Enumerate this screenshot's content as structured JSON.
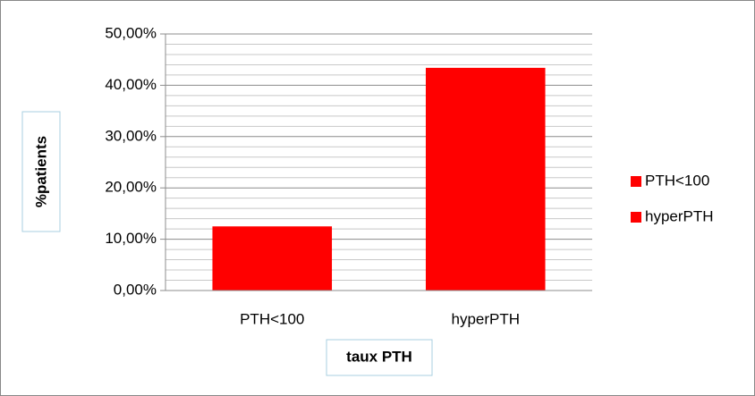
{
  "chart_data": {
    "type": "bar",
    "categories": [
      "PTH<100",
      "hyperPTH"
    ],
    "values": [
      12.5,
      43.4
    ],
    "colors": [
      "#ff0000",
      "#ff0000"
    ],
    "ylim": [
      0,
      50
    ],
    "yticks": [
      {
        "value": 0,
        "label": "0,00%"
      },
      {
        "value": 10,
        "label": "10,00%"
      },
      {
        "value": 20,
        "label": "20,00%"
      },
      {
        "value": 30,
        "label": "30,00%"
      },
      {
        "value": 40,
        "label": "40,00%"
      },
      {
        "value": 50,
        "label": "50,00%"
      }
    ],
    "minor_yticks": [
      2,
      4,
      6,
      8,
      12,
      14,
      16,
      18,
      22,
      24,
      26,
      28,
      32,
      34,
      36,
      38,
      42,
      44,
      46,
      48
    ],
    "grid": true,
    "legend": "right",
    "ylabel": "%patients",
    "xlabel": "taux PTH"
  }
}
